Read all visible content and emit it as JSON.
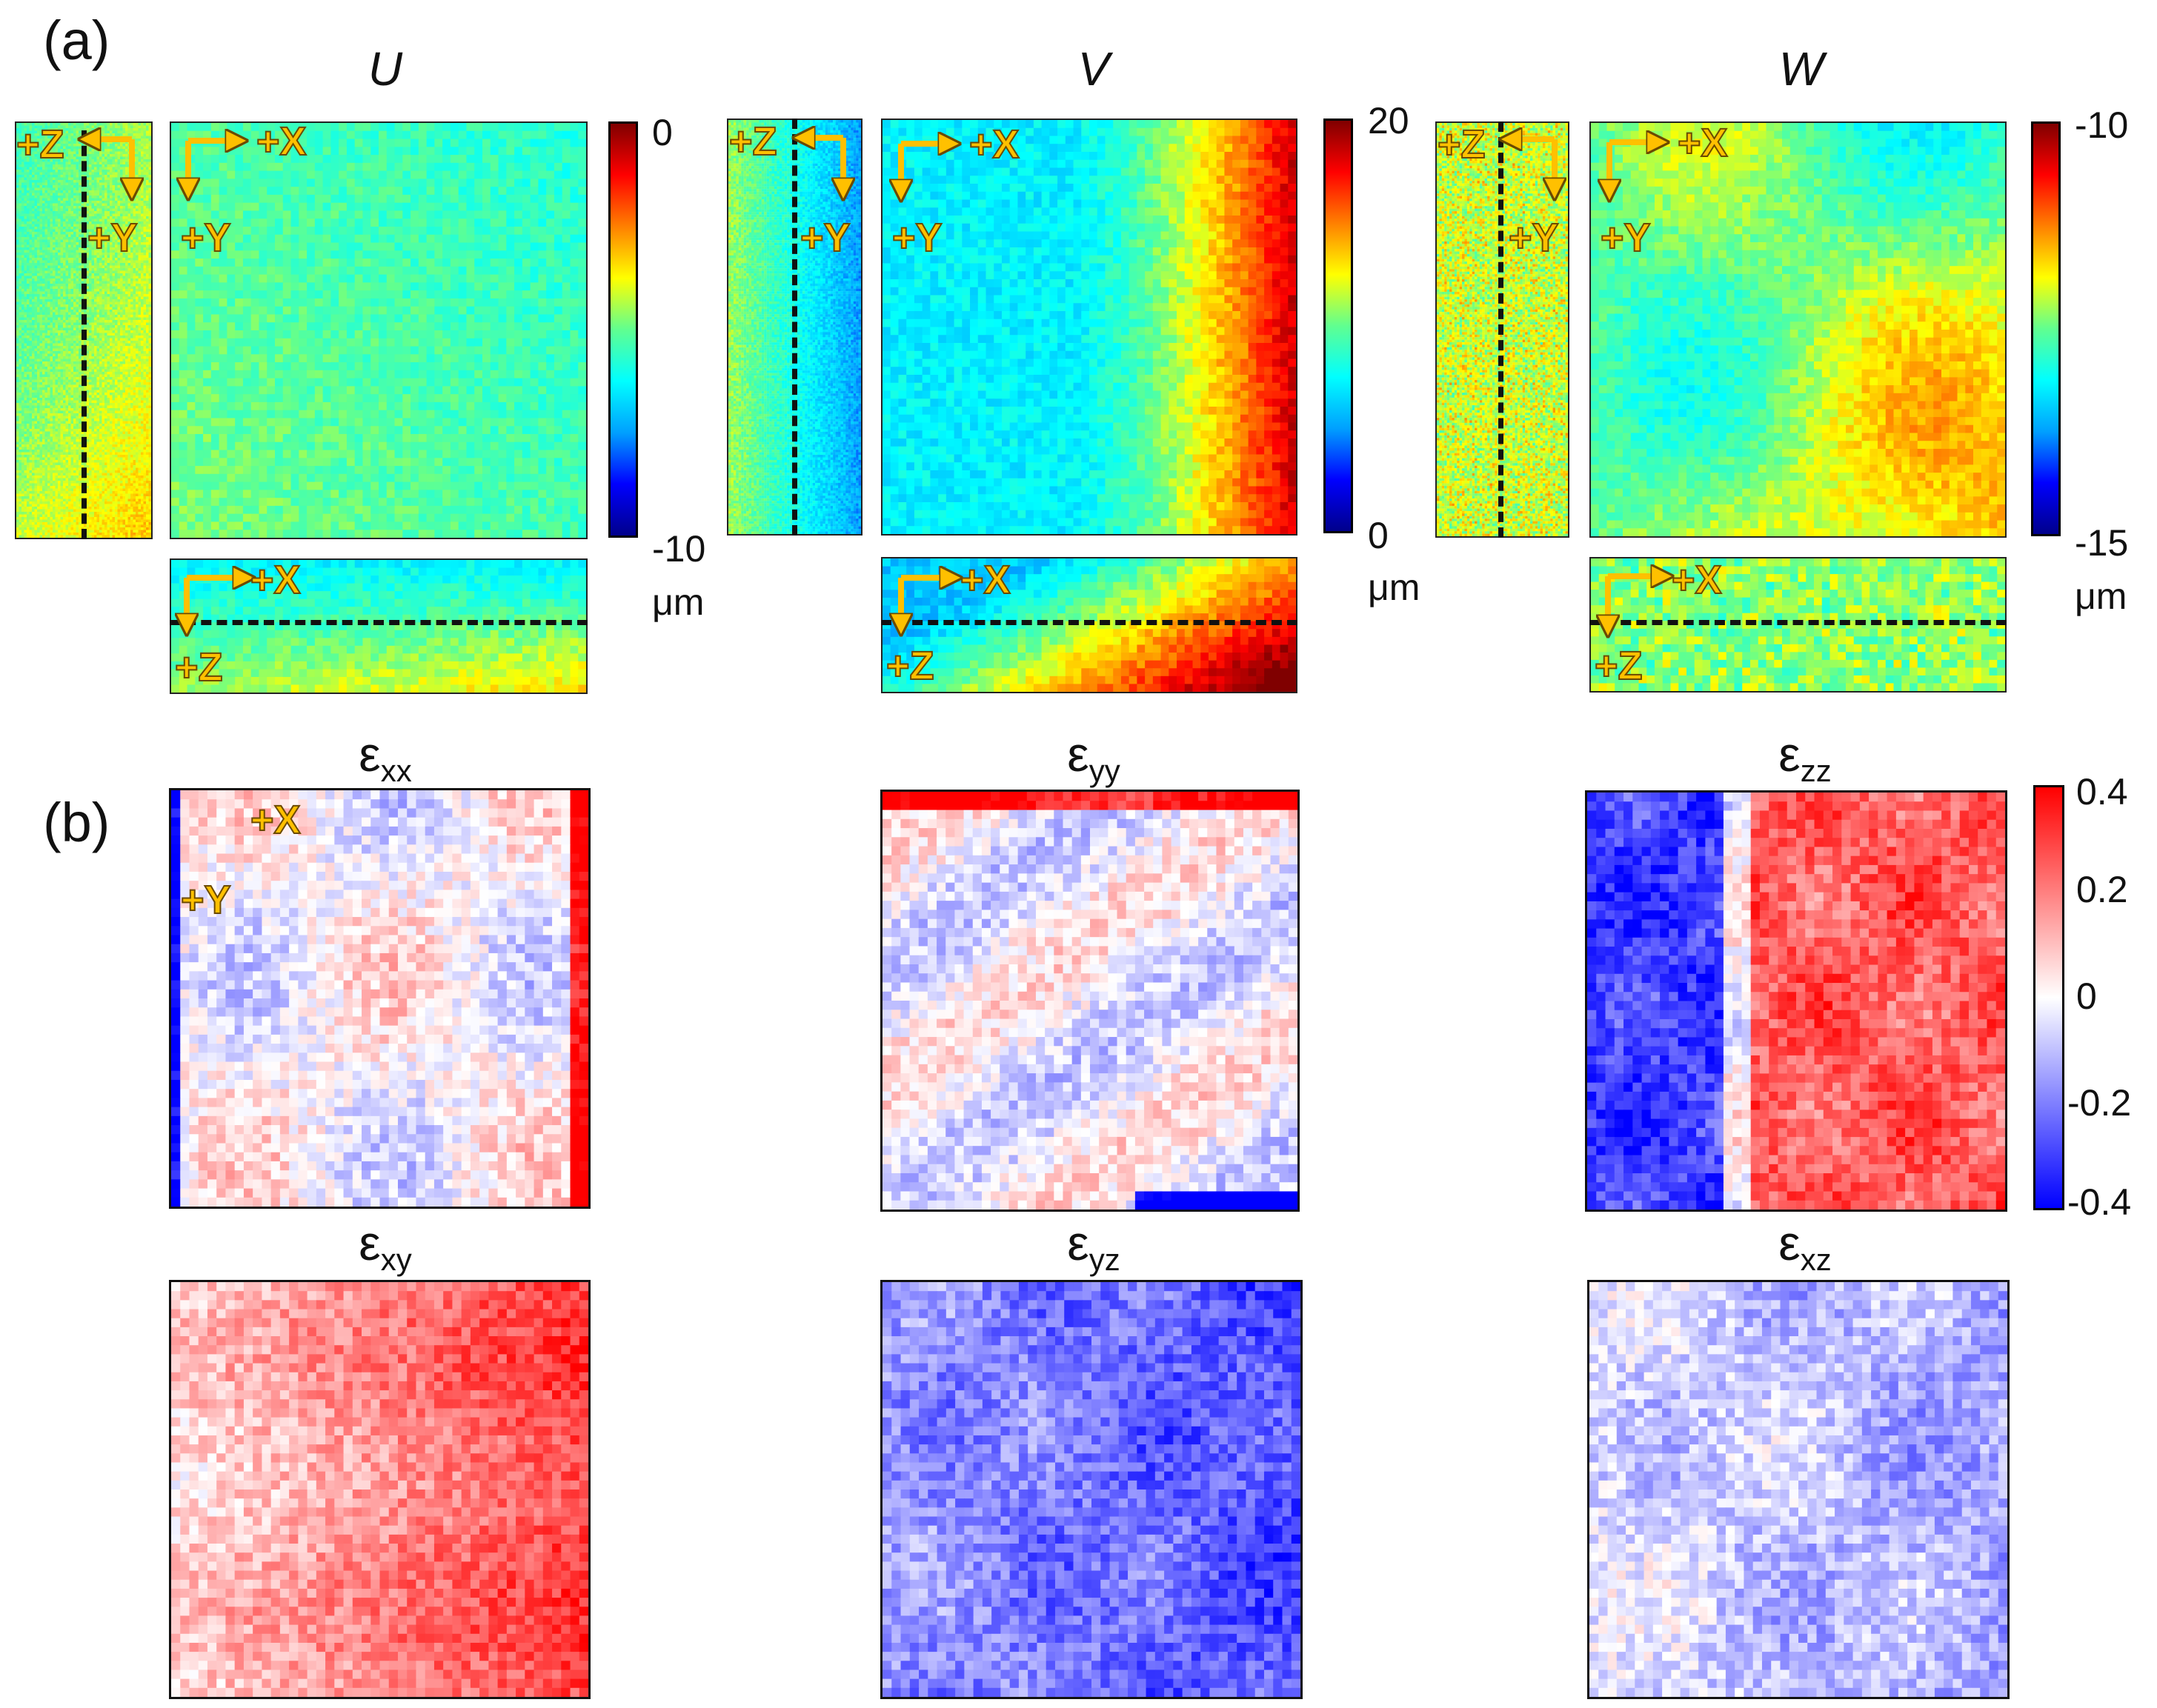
{
  "panels": {
    "a": "(a)",
    "b": "(b)"
  },
  "titles": {
    "U": "U",
    "V": "V",
    "W": "W"
  },
  "strain_titles": [
    {
      "sym": "ε",
      "sub": "xx"
    },
    {
      "sym": "ε",
      "sub": "yy"
    },
    {
      "sym": "ε",
      "sub": "zz"
    },
    {
      "sym": "ε",
      "sub": "xy"
    },
    {
      "sym": "ε",
      "sub": "yz"
    },
    {
      "sym": "ε",
      "sub": "xz"
    }
  ],
  "axes": {
    "pX": "+X",
    "pY": "+Y",
    "pZ": "+Z"
  },
  "colorbars": {
    "U": {
      "max": "0",
      "min": "-10",
      "unit": "μm"
    },
    "V": {
      "max": "20",
      "min": "0",
      "unit": "μm"
    },
    "W": {
      "max": "-10",
      "min": "-15",
      "unit": "μm"
    },
    "strain": {
      "ticks": [
        "0.4",
        "0.2",
        "0",
        "-0.2",
        "-0.4"
      ]
    }
  },
  "colors": {
    "jet": [
      "#00008b",
      "#0000ff",
      "#00a0ff",
      "#00ffff",
      "#60ff90",
      "#ffff00",
      "#ff8000",
      "#ff0000",
      "#800000"
    ],
    "diverging": [
      "#0000ff",
      "#8080ff",
      "#ffffff",
      "#ff8080",
      "#ff0000"
    ],
    "axis_arrow": "#ffc000"
  }
}
